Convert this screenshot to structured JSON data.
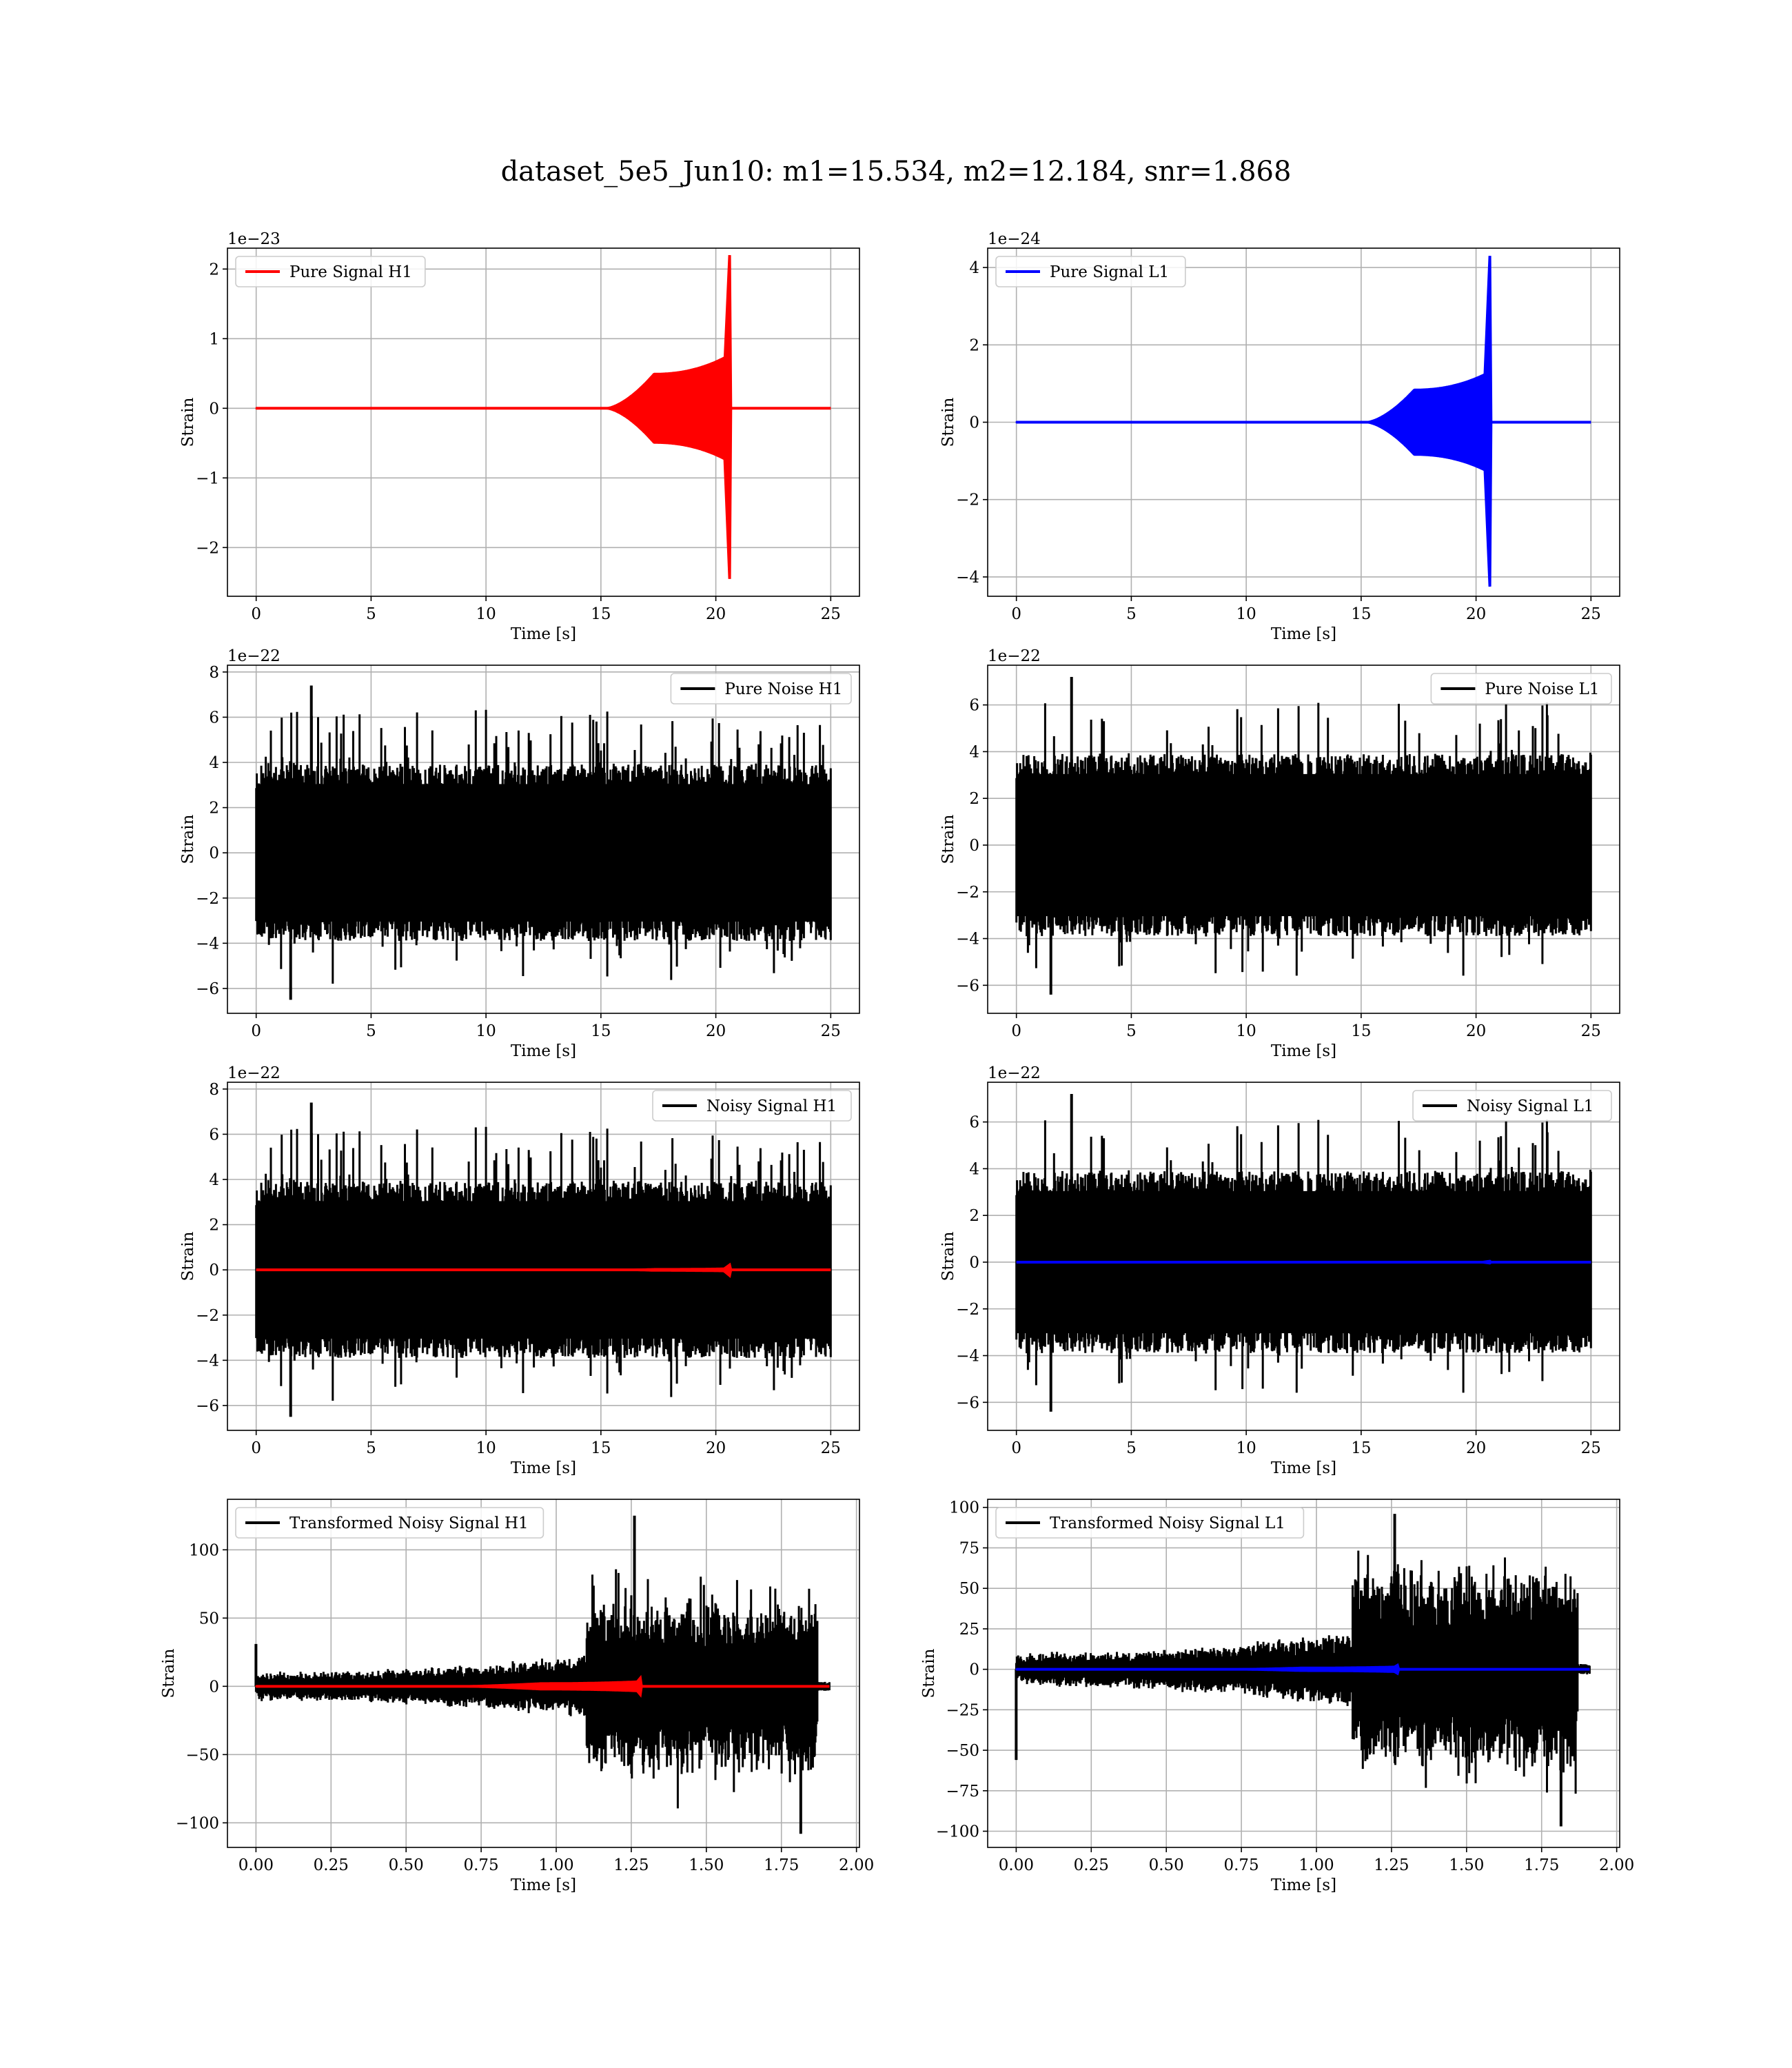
{
  "figure": {
    "suptitle": "dataset_5e5_Jun10: m1=15.534, m2=12.184, snr=1.868",
    "colors": {
      "red": "#ff0000",
      "blue": "#0000ff",
      "black": "#000000",
      "grid": "#b0b0b0",
      "axes": "#000000",
      "legend_edge": "#cccccc"
    }
  },
  "chart_data": [
    {
      "id": "pure-signal-h1",
      "type": "line",
      "title": "",
      "xlabel": "Time [s]",
      "ylabel": "Strain",
      "offset_text": "1e−23",
      "xlim": [
        -1.25,
        26.25
      ],
      "ylim": [
        -2.7,
        2.3
      ],
      "xticks": [
        0,
        5,
        10,
        15,
        20,
        25
      ],
      "xtick_labels": [
        "0",
        "5",
        "10",
        "15",
        "20",
        "25"
      ],
      "yticks": [
        -2,
        -1,
        0,
        1,
        2
      ],
      "ytick_labels": [
        "−2",
        "−1",
        "0",
        "1",
        "2"
      ],
      "grid": true,
      "legend": "upper-left",
      "series": [
        {
          "name": "Pure Signal H1",
          "color": "#ff0000",
          "kind": "chirp",
          "t_end": 25,
          "t_merge": 20.6,
          "t_rise": 15.2,
          "plateau_t": 17.3,
          "plateau_amp": 0.5,
          "peak_pos": 2.2,
          "peak_neg": -2.45
        }
      ]
    },
    {
      "id": "pure-signal-l1",
      "type": "line",
      "title": "",
      "xlabel": "Time [s]",
      "ylabel": "Strain",
      "offset_text": "1e−24",
      "xlim": [
        -1.25,
        26.25
      ],
      "ylim": [
        -4.5,
        4.5
      ],
      "xticks": [
        0,
        5,
        10,
        15,
        20,
        25
      ],
      "xtick_labels": [
        "0",
        "5",
        "10",
        "15",
        "20",
        "25"
      ],
      "yticks": [
        -4,
        -2,
        0,
        2,
        4
      ],
      "ytick_labels": [
        "−4",
        "−2",
        "0",
        "2",
        "4"
      ],
      "grid": true,
      "legend": "upper-left",
      "series": [
        {
          "name": "Pure Signal L1",
          "color": "#0000ff",
          "kind": "chirp",
          "t_end": 25,
          "t_merge": 20.6,
          "t_rise": 15.2,
          "plateau_t": 17.3,
          "plateau_amp": 0.85,
          "peak_pos": 4.3,
          "peak_neg": -4.25
        }
      ]
    },
    {
      "id": "pure-noise-h1",
      "type": "line",
      "title": "",
      "xlabel": "Time [s]",
      "ylabel": "Strain",
      "offset_text": "1e−22",
      "xlim": [
        -1.25,
        26.25
      ],
      "ylim": [
        -7.1,
        8.3
      ],
      "xticks": [
        0,
        5,
        10,
        15,
        20,
        25
      ],
      "xtick_labels": [
        "0",
        "5",
        "10",
        "15",
        "20",
        "25"
      ],
      "yticks": [
        -6,
        -4,
        -2,
        0,
        2,
        4,
        6,
        8
      ],
      "ytick_labels": [
        "−6",
        "−4",
        "−2",
        "0",
        "2",
        "4",
        "6",
        "8"
      ],
      "grid": true,
      "legend": "upper-right",
      "series": [
        {
          "name": "Pure Noise H1",
          "color": "#000000",
          "kind": "noise",
          "t_end": 25,
          "band": 3.9,
          "max": 7.4,
          "min": -6.5,
          "seed": 11
        }
      ]
    },
    {
      "id": "pure-noise-l1",
      "type": "line",
      "title": "",
      "xlabel": "Time [s]",
      "ylabel": "Strain",
      "offset_text": "1e−22",
      "xlim": [
        -1.25,
        26.25
      ],
      "ylim": [
        -7.2,
        7.7
      ],
      "xticks": [
        0,
        5,
        10,
        15,
        20,
        25
      ],
      "xtick_labels": [
        "0",
        "5",
        "10",
        "15",
        "20",
        "25"
      ],
      "yticks": [
        -6,
        -4,
        -2,
        0,
        2,
        4,
        6
      ],
      "ytick_labels": [
        "−6",
        "−4",
        "−2",
        "0",
        "2",
        "4",
        "6"
      ],
      "grid": true,
      "legend": "upper-right",
      "series": [
        {
          "name": "Pure Noise L1",
          "color": "#000000",
          "kind": "noise",
          "t_end": 25,
          "band": 3.9,
          "max": 7.2,
          "min": -6.4,
          "seed": 23
        }
      ]
    },
    {
      "id": "noisy-signal-h1",
      "type": "line",
      "title": "",
      "xlabel": "Time [s]",
      "ylabel": "Strain",
      "offset_text": "1e−22",
      "xlim": [
        -1.25,
        26.25
      ],
      "ylim": [
        -7.1,
        8.3
      ],
      "xticks": [
        0,
        5,
        10,
        15,
        20,
        25
      ],
      "xtick_labels": [
        "0",
        "5",
        "10",
        "15",
        "20",
        "25"
      ],
      "yticks": [
        -6,
        -4,
        -2,
        0,
        2,
        4,
        6,
        8
      ],
      "ytick_labels": [
        "−6",
        "−4",
        "−2",
        "0",
        "2",
        "4",
        "6",
        "8"
      ],
      "grid": true,
      "legend": "upper-right",
      "series": [
        {
          "name": "Noisy Signal H1",
          "color": "#000000",
          "kind": "noise",
          "t_end": 25,
          "band": 3.9,
          "max": 7.4,
          "min": -6.5,
          "seed": 11
        },
        {
          "name": "",
          "color": "#ff0000",
          "kind": "chirp",
          "t_end": 25,
          "t_merge": 20.6,
          "t_rise": 15.2,
          "plateau_t": 17.3,
          "plateau_amp": 0.05,
          "peak_pos": 0.22,
          "peak_neg": -0.25
        }
      ]
    },
    {
      "id": "noisy-signal-l1",
      "type": "line",
      "title": "",
      "xlabel": "Time [s]",
      "ylabel": "Strain",
      "offset_text": "1e−22",
      "xlim": [
        -1.25,
        26.25
      ],
      "ylim": [
        -7.2,
        7.7
      ],
      "xticks": [
        0,
        5,
        10,
        15,
        20,
        25
      ],
      "xtick_labels": [
        "0",
        "5",
        "10",
        "15",
        "20",
        "25"
      ],
      "yticks": [
        -6,
        -4,
        -2,
        0,
        2,
        4,
        6
      ],
      "ytick_labels": [
        "−6",
        "−4",
        "−2",
        "0",
        "2",
        "4",
        "6"
      ],
      "grid": true,
      "legend": "upper-right",
      "series": [
        {
          "name": "Noisy Signal L1",
          "color": "#000000",
          "kind": "noise",
          "t_end": 25,
          "band": 3.9,
          "max": 7.2,
          "min": -6.4,
          "seed": 23
        },
        {
          "name": "",
          "color": "#0000ff",
          "kind": "chirp",
          "t_end": 25,
          "t_merge": 20.6,
          "t_rise": 15.2,
          "plateau_t": 17.3,
          "plateau_amp": 0.008,
          "peak_pos": 0.04,
          "peak_neg": -0.04
        }
      ]
    },
    {
      "id": "transformed-noisy-signal-h1",
      "type": "line",
      "title": "",
      "xlabel": "Time [s]",
      "ylabel": "Strain",
      "offset_text": "",
      "xlim": [
        -0.095,
        2.01
      ],
      "ylim": [
        -118,
        137
      ],
      "xticks": [
        0.0,
        0.25,
        0.5,
        0.75,
        1.0,
        1.25,
        1.5,
        1.75,
        2.0
      ],
      "xtick_labels": [
        "0.00",
        "0.25",
        "0.50",
        "0.75",
        "1.00",
        "1.25",
        "1.50",
        "1.75",
        "2.00"
      ],
      "yticks": [
        -100,
        -50,
        0,
        50,
        100
      ],
      "ytick_labels": [
        "−100",
        "−50",
        "0",
        "50",
        "100"
      ],
      "grid": true,
      "legend": "upper-left",
      "series": [
        {
          "name": "Transformed Noisy Signal H1",
          "color": "#000000",
          "kind": "whitened",
          "t_end": 1.91,
          "t_jump": 1.1,
          "t_stop": 1.87,
          "max": 125,
          "min": -108,
          "first_spike": 31,
          "seed": 37
        },
        {
          "name": "",
          "color": "#ff0000",
          "kind": "chirp",
          "t_end": 1.91,
          "t_merge": 1.28,
          "t_rise": 0.6,
          "plateau_t": 0.95,
          "plateau_amp": 2.5,
          "peak_pos": 6,
          "peak_neg": -6
        }
      ]
    },
    {
      "id": "transformed-noisy-signal-l1",
      "type": "line",
      "title": "",
      "xlabel": "Time [s]",
      "ylabel": "Strain",
      "offset_text": "",
      "xlim": [
        -0.095,
        2.01
      ],
      "ylim": [
        -110,
        105
      ],
      "xticks": [
        0.0,
        0.25,
        0.5,
        0.75,
        1.0,
        1.25,
        1.5,
        1.75,
        2.0
      ],
      "xtick_labels": [
        "0.00",
        "0.25",
        "0.50",
        "0.75",
        "1.00",
        "1.25",
        "1.50",
        "1.75",
        "2.00"
      ],
      "yticks": [
        -100,
        -75,
        -50,
        -25,
        0,
        25,
        50,
        75,
        100
      ],
      "ytick_labels": [
        "−100",
        "−75",
        "−50",
        "−25",
        "0",
        "25",
        "50",
        "75",
        "100"
      ],
      "grid": true,
      "legend": "upper-left",
      "series": [
        {
          "name": "Transformed Noisy Signal L1",
          "color": "#000000",
          "kind": "whitened",
          "t_end": 1.91,
          "t_jump": 1.12,
          "t_stop": 1.87,
          "max": 96,
          "min": -97,
          "first_spike": -56,
          "seed": 53
        },
        {
          "name": "",
          "color": "#0000ff",
          "kind": "chirp",
          "t_end": 1.91,
          "t_merge": 1.27,
          "t_rise": 0.6,
          "plateau_t": 0.95,
          "plateau_amp": 1.2,
          "peak_pos": 2.5,
          "peak_neg": -2.5
        }
      ]
    }
  ]
}
